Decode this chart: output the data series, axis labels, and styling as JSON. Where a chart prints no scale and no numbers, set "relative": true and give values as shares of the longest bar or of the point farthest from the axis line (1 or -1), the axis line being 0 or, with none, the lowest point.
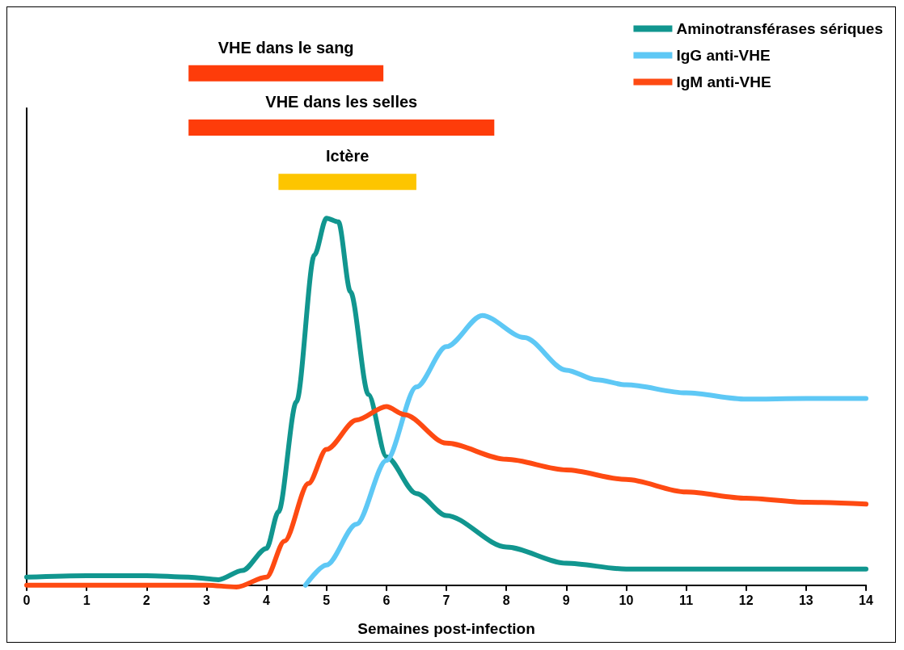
{
  "chart_data": [
    {
      "type": "bar",
      "orientation": "horizontal",
      "categories": [
        "VHE dans le sang",
        "VHE dans les selles",
        "Ictère"
      ],
      "base": [
        2.7,
        2.7,
        4.2
      ],
      "values": [
        3.25,
        5.1,
        2.3
      ],
      "colors": [
        "#fe3c0a",
        "#fe3c0a",
        "#fdc500"
      ],
      "xlim": [
        0,
        14
      ],
      "tick_labels": false
    },
    {
      "type": "line",
      "relative": true,
      "xlabel": "Semaines post-infection",
      "xlim": [
        0,
        14
      ],
      "xticks": [
        0,
        1,
        2,
        3,
        4,
        5,
        6,
        7,
        8,
        9,
        10,
        11,
        12,
        13,
        14
      ],
      "grid": false,
      "legend": "top right",
      "marker": "none",
      "line_style": "solid",
      "series": [
        {
          "name": "Aminotransférases sériques",
          "color": "#11968f",
          "x": [
            0,
            1,
            2,
            2.7,
            3.2,
            3.6,
            4,
            4.2,
            4.5,
            4.8,
            5,
            5.2,
            5.4,
            5.7,
            6,
            6.5,
            7,
            8,
            9,
            10,
            11,
            12,
            13,
            14
          ],
          "values": [
            0.022,
            0.026,
            0.026,
            0.022,
            0.015,
            0.04,
            0.1,
            0.2,
            0.5,
            0.9,
            1,
            0.99,
            0.8,
            0.52,
            0.35,
            0.25,
            0.19,
            0.104,
            0.06,
            0.044,
            0.044,
            0.044,
            0.044,
            0.044
          ]
        },
        {
          "name": "IgG anti-VHE",
          "color": "#5ec8f5",
          "x": [
            4.65,
            5,
            5.5,
            6,
            6.5,
            7,
            7.6,
            8.3,
            9,
            9.5,
            10,
            11,
            12,
            13,
            14
          ],
          "values": [
            0,
            0.055,
            0.166,
            0.34,
            0.54,
            0.65,
            0.735,
            0.675,
            0.586,
            0.56,
            0.546,
            0.524,
            0.507,
            0.509,
            0.509
          ]
        },
        {
          "name": "IgM anti-VHE",
          "color": "#fe4a12",
          "x": [
            0,
            1,
            2,
            3,
            3.5,
            4,
            4.3,
            4.7,
            5,
            5.5,
            6,
            6.3,
            7,
            8,
            9,
            10,
            11,
            12,
            13,
            14
          ],
          "values": [
            0,
            0,
            0,
            0,
            -0.005,
            0.022,
            0.12,
            0.277,
            0.37,
            0.45,
            0.487,
            0.465,
            0.387,
            0.343,
            0.314,
            0.288,
            0.254,
            0.237,
            0.226,
            0.221
          ]
        }
      ]
    }
  ]
}
